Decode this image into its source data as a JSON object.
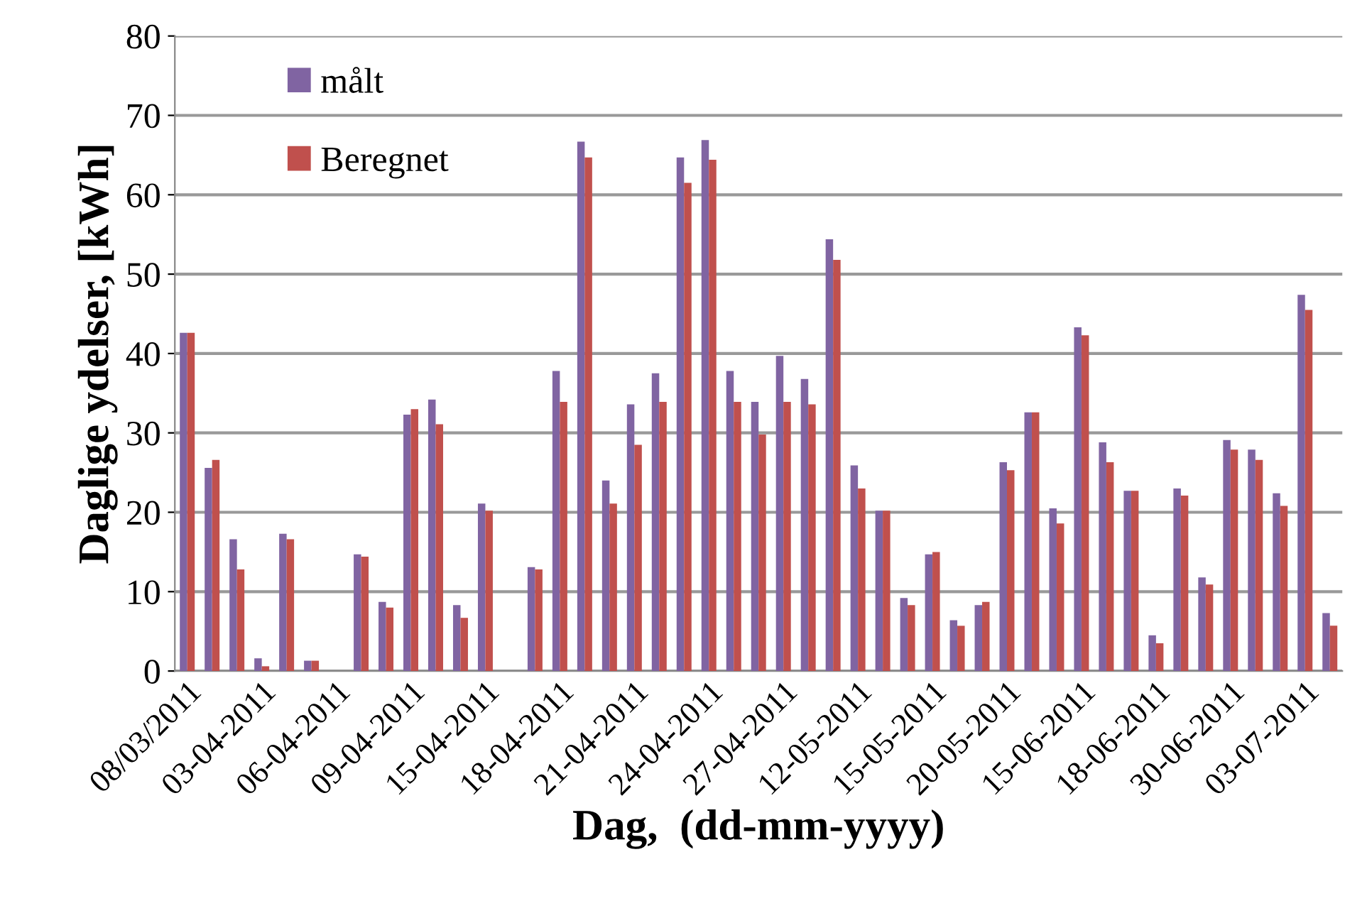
{
  "chart_data": {
    "type": "bar",
    "xlabel": "Dag,  (dd-mm-yyyy)",
    "ylabel": "Daglige ydelser, [kWh]",
    "categories": [
      "08/03/2011",
      null,
      null,
      "03-04-2011",
      null,
      null,
      "06-04-2011",
      null,
      null,
      "09-04-2011",
      null,
      null,
      "15-04-2011",
      null,
      null,
      "18-04-2011",
      null,
      null,
      "21-04-2011",
      null,
      null,
      "24-04-2011",
      null,
      null,
      "27-04-2011",
      null,
      null,
      "12-05-2011",
      null,
      null,
      "15-05-2011",
      null,
      null,
      "20-05-2011",
      null,
      null,
      "15-06-2011",
      null,
      null,
      "18-06-2011",
      null,
      null,
      "30-06-2011",
      null,
      null,
      "03-07-2011",
      null
    ],
    "series": [
      {
        "name": "målt",
        "color": "#8064a2",
        "values": [
          42.6,
          25.6,
          16.6,
          1.6,
          17.3,
          1.3,
          null,
          14.7,
          8.7,
          32.3,
          34.2,
          8.3,
          21.1,
          null,
          13.1,
          37.8,
          66.7,
          24.0,
          33.6,
          37.5,
          64.7,
          66.9,
          37.8,
          33.9,
          39.7,
          36.8,
          54.4,
          25.9,
          20.2,
          9.2,
          14.7,
          6.4,
          8.3,
          26.3,
          32.6,
          20.5,
          43.3,
          28.8,
          22.7,
          4.5,
          23.0,
          11.8,
          29.1,
          27.9,
          22.4,
          47.4,
          7.3
        ]
      },
      {
        "name": "Beregnet",
        "color": "#c0504d",
        "values": [
          42.6,
          26.6,
          12.8,
          0.6,
          16.6,
          1.3,
          null,
          14.4,
          8.0,
          33.0,
          31.1,
          6.7,
          20.2,
          null,
          12.8,
          33.9,
          64.7,
          21.1,
          28.5,
          33.9,
          61.5,
          64.4,
          33.9,
          29.8,
          33.9,
          33.6,
          51.8,
          23.0,
          20.2,
          8.3,
          15.0,
          5.7,
          8.7,
          25.3,
          32.6,
          18.6,
          42.3,
          26.3,
          22.7,
          3.5,
          22.1,
          10.9,
          27.9,
          26.6,
          20.8,
          45.5,
          5.7
        ]
      }
    ],
    "ylim": [
      0,
      80
    ],
    "yticks": [
      0,
      10,
      20,
      30,
      40,
      50,
      60,
      70,
      80
    ],
    "grid": "y",
    "legend": "top left"
  }
}
